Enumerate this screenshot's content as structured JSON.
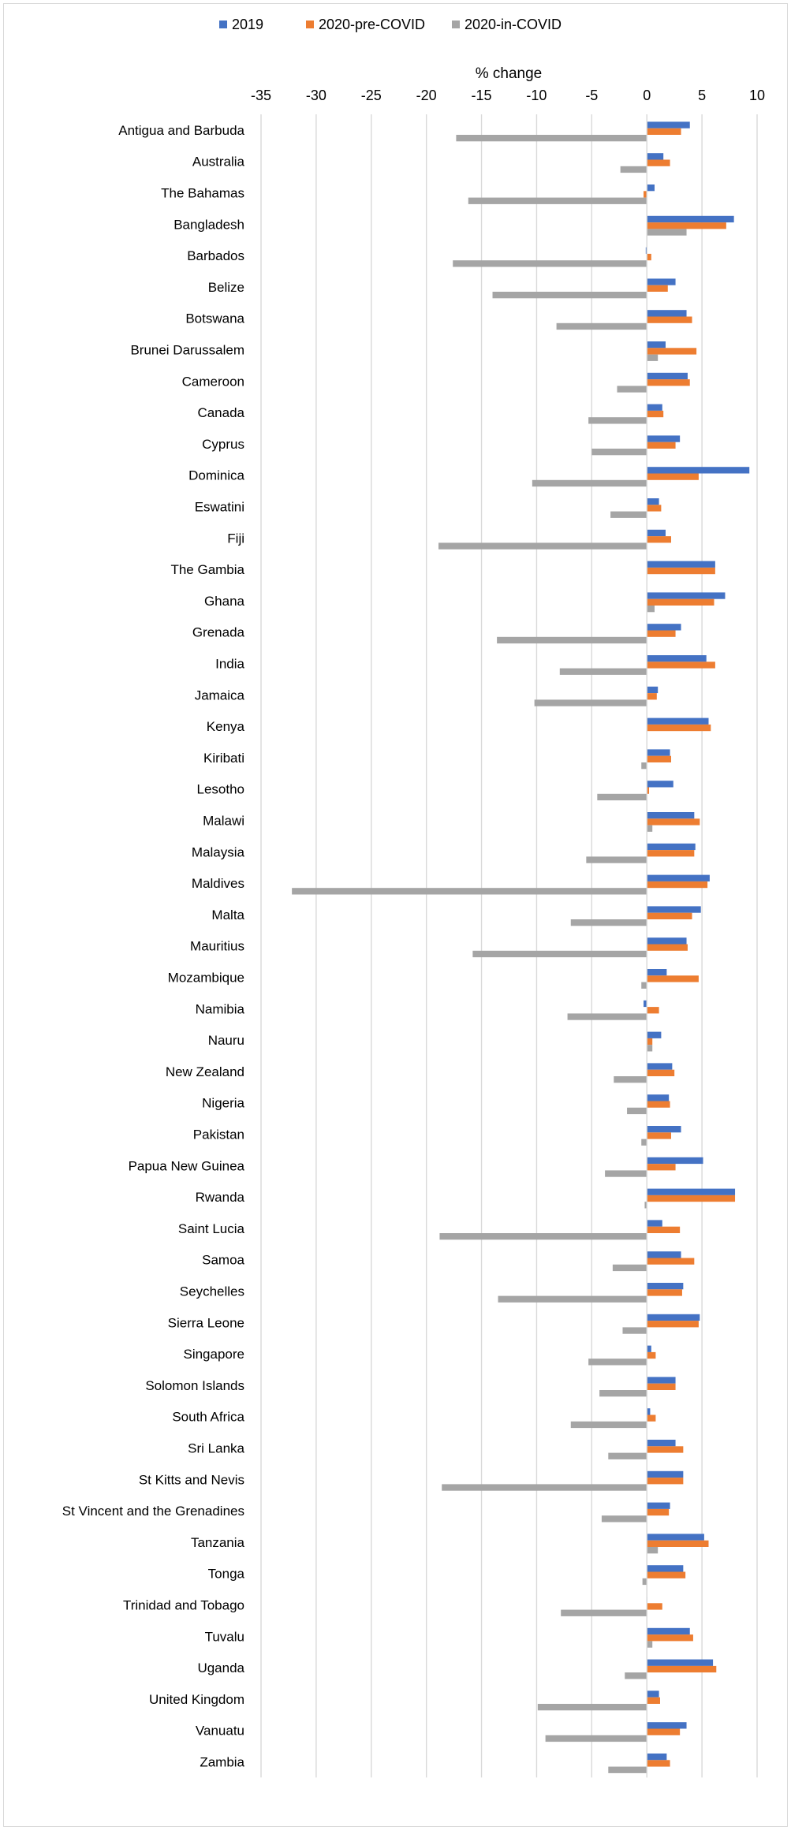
{
  "chart_data": {
    "type": "bar",
    "orientation": "horizontal",
    "xlabel": "% change",
    "xlim": [
      -35,
      10
    ],
    "xticks": [
      -35,
      -30,
      -25,
      -20,
      -15,
      -10,
      -5,
      0,
      5,
      10
    ],
    "grid": true,
    "legend_position": "top",
    "categories": [
      "Antigua and Barbuda",
      "Australia",
      "The Bahamas",
      "Bangladesh",
      "Barbados",
      "Belize",
      "Botswana",
      "Brunei Darussalem",
      "Cameroon",
      "Canada",
      "Cyprus",
      "Dominica",
      "Eswatini",
      "Fiji",
      "The Gambia",
      "Ghana",
      "Grenada",
      "India",
      "Jamaica",
      "Kenya",
      "Kiribati",
      "Lesotho",
      "Malawi",
      "Malaysia",
      "Maldives",
      "Malta",
      "Mauritius",
      "Mozambique",
      "Namibia",
      "Nauru",
      "New Zealand",
      "Nigeria",
      "Pakistan",
      "Papua New Guinea",
      "Rwanda",
      "Saint Lucia",
      "Samoa",
      "Seychelles",
      "Sierra Leone",
      "Singapore",
      "Solomon Islands",
      "South Africa",
      "Sri Lanka",
      "St Kitts and Nevis",
      "St Vincent and the Grenadines",
      "Tanzania",
      "Tonga",
      "Trinidad and Tobago",
      "Tuvalu",
      "Uganda",
      "United Kingdom",
      "Vanuatu",
      "Zambia"
    ],
    "series": [
      {
        "name": "2019",
        "color": "#4472c4",
        "values": [
          3.9,
          1.5,
          0.7,
          7.9,
          -0.1,
          2.6,
          3.6,
          1.7,
          3.7,
          1.4,
          3.0,
          9.3,
          1.1,
          1.7,
          6.2,
          7.1,
          3.1,
          5.4,
          1.0,
          5.6,
          2.1,
          2.4,
          4.3,
          4.4,
          5.7,
          4.9,
          3.6,
          1.8,
          -0.3,
          1.3,
          2.3,
          2.0,
          3.1,
          5.1,
          8.0,
          1.4,
          3.1,
          3.3,
          4.8,
          0.4,
          2.6,
          0.3,
          2.6,
          3.3,
          2.1,
          5.2,
          3.3,
          0.0,
          3.9,
          6.0,
          1.1,
          3.6,
          1.8
        ]
      },
      {
        "name": "2020-pre-COVID",
        "color": "#ed7d31",
        "values": [
          3.1,
          2.1,
          -0.3,
          7.2,
          0.4,
          1.9,
          4.1,
          4.5,
          3.9,
          1.5,
          2.6,
          4.7,
          1.3,
          2.2,
          6.2,
          6.1,
          2.6,
          6.2,
          0.9,
          5.8,
          2.2,
          0.2,
          4.8,
          4.3,
          5.5,
          4.1,
          3.7,
          4.7,
          1.1,
          0.5,
          2.5,
          2.1,
          2.2,
          2.6,
          8.0,
          3.0,
          4.3,
          3.2,
          4.7,
          0.8,
          2.6,
          0.8,
          3.3,
          3.3,
          2.0,
          5.6,
          3.5,
          1.4,
          4.2,
          6.3,
          1.2,
          3.0,
          2.1
        ]
      },
      {
        "name": "2020-in-COVID",
        "color": "#a5a5a5",
        "values": [
          -17.3,
          -2.4,
          -16.2,
          3.6,
          -17.6,
          -14.0,
          -8.2,
          1.0,
          -2.7,
          -5.3,
          -5.0,
          -10.4,
          -3.3,
          -18.9,
          0.0,
          0.7,
          -13.6,
          -7.9,
          -10.2,
          0.0,
          -0.5,
          -4.5,
          0.5,
          -5.5,
          -32.2,
          -6.9,
          -15.8,
          -0.5,
          -7.2,
          0.5,
          -3.0,
          -1.8,
          -0.5,
          -3.8,
          -0.2,
          -18.8,
          -3.1,
          -13.5,
          -2.2,
          -5.3,
          -4.3,
          -6.9,
          -3.5,
          -18.6,
          -4.1,
          1.0,
          -0.4,
          -7.8,
          0.5,
          -2.0,
          -9.9,
          -9.2,
          -3.5
        ]
      }
    ]
  }
}
